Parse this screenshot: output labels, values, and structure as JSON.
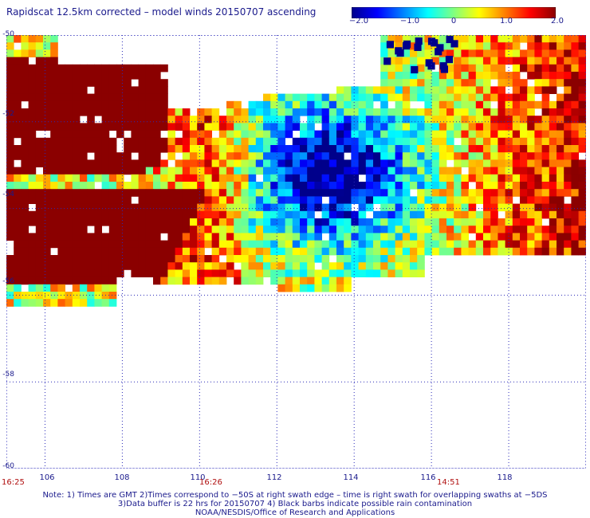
{
  "title": "Rapidscat 12.5km corrected – model winds 20150707 ascending",
  "colorbar": {
    "ticks": [
      "−2.0",
      "−1.0",
      "0",
      "1.0",
      "2.0"
    ],
    "tick_values": [
      -2.0,
      -1.0,
      0,
      1.0,
      2.0
    ],
    "stops": [
      "#00008b",
      "#0000ff",
      "#0080ff",
      "#00ffff",
      "#80ff80",
      "#ffff00",
      "#ff8000",
      "#ff0000",
      "#8b0000"
    ]
  },
  "map": {
    "lat_range": [
      -60,
      -50
    ],
    "lon_range": [
      105,
      120
    ],
    "lat_labels": [
      "-50",
      "-52",
      "-54",
      "-56",
      "-58",
      "-60"
    ],
    "lat_values": [
      -50,
      -52,
      -54,
      -56,
      -58,
      -60
    ],
    "lon_labels": [
      "106",
      "108",
      "110",
      "112",
      "114",
      "116",
      "118"
    ],
    "lon_values": [
      106,
      108,
      110,
      112,
      114,
      116,
      118
    ],
    "times": [
      {
        "label": "16:25",
        "lon": 105
      },
      {
        "label": "16:26",
        "lon": 110.2
      },
      {
        "label": "14:51",
        "lon": 116.4
      }
    ]
  },
  "notes": {
    "line1": "Note: 1) Times are GMT 2)Times correspond to −50S at right swath edge – time is right swath for overlapping swaths at −5DS",
    "line2": "3)Data buffer is 22 hrs for 20150707 4) Black barbs indicate possible rain contamination",
    "line3": "NOAA/NESDIS/Office of Research and Applications"
  }
}
